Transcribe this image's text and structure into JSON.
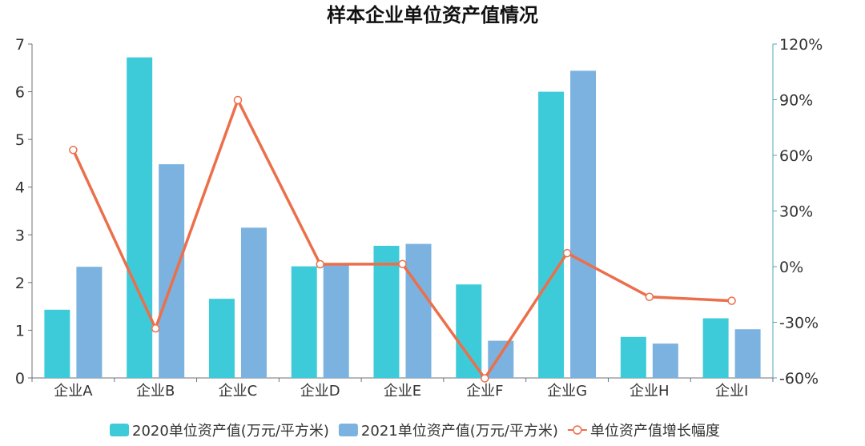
{
  "chart_data": {
    "type": "bar",
    "title": "样本企业单位资产值情况",
    "categories": [
      "企业A",
      "企业B",
      "企业C",
      "企业D",
      "企业E",
      "企业F",
      "企业G",
      "企业H",
      "企业I"
    ],
    "series": [
      {
        "name": "2020单位资产值(万元/平方米)",
        "type": "bar",
        "axis": "left",
        "color": "#3ecbd9",
        "values": [
          1.43,
          6.72,
          1.66,
          2.34,
          2.77,
          1.96,
          6.0,
          0.86,
          1.25
        ]
      },
      {
        "name": "2021单位资产值(万元/平方米)",
        "type": "bar",
        "axis": "left",
        "color": "#7cb2df",
        "values": [
          2.33,
          4.48,
          3.15,
          2.37,
          2.81,
          0.78,
          6.44,
          0.72,
          1.02
        ]
      },
      {
        "name": "单位资产值增长幅度",
        "type": "line",
        "axis": "right",
        "color": "#ec6f4b",
        "values": [
          62.9,
          -33.3,
          89.8,
          1.3,
          1.4,
          -60.2,
          7.3,
          -16.3,
          -18.4
        ]
      }
    ],
    "y_left": {
      "ylim": [
        0,
        7
      ],
      "ticks": [
        "0",
        "1",
        "2",
        "3",
        "4",
        "5",
        "6",
        "7"
      ]
    },
    "y_right": {
      "ylim": [
        -60,
        120
      ],
      "ticks": [
        "-60%",
        "-30%",
        "0%",
        "30%",
        "60%",
        "90%",
        "120%"
      ]
    },
    "legend_position": "bottom-center",
    "grid": false
  }
}
